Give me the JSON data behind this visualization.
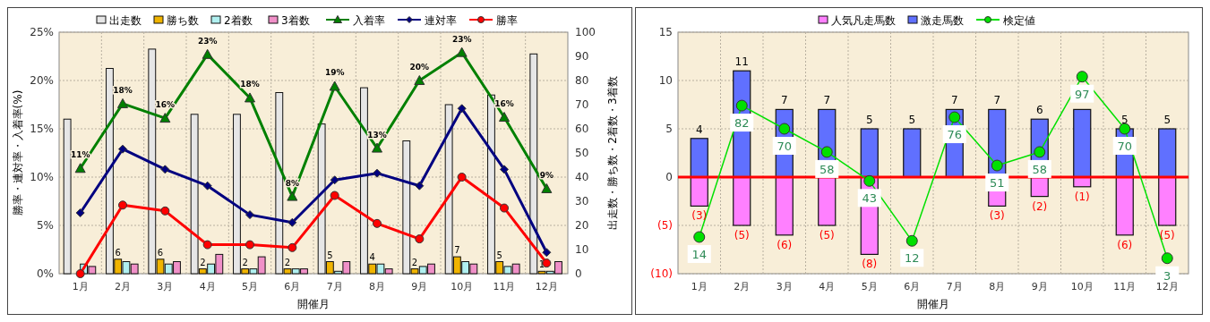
{
  "chart_data": [
    {
      "type": "bar",
      "legend": "top",
      "grid": true,
      "xlabel": "開催月",
      "ylabel": "勝率・連対率・入着率(%)",
      "y2label": "出走数・勝ち数・2着数・3着数",
      "categories": [
        "1月",
        "2月",
        "3月",
        "4月",
        "5月",
        "6月",
        "7月",
        "8月",
        "9月",
        "10月",
        "11月",
        "12月"
      ],
      "ylim": [
        0,
        25
      ],
      "yticks": [
        {
          "value": 0,
          "label": "0%"
        },
        {
          "value": 5,
          "label": "5%"
        },
        {
          "value": 10,
          "label": "10%"
        },
        {
          "value": 15,
          "label": "15%"
        },
        {
          "value": 20,
          "label": "20%"
        },
        {
          "value": 25,
          "label": "25%"
        }
      ],
      "y2lim": [
        0,
        100
      ],
      "y2ticks": [
        0,
        10,
        20,
        30,
        40,
        50,
        60,
        70,
        80,
        90,
        100
      ],
      "series": [
        {
          "name": "出走数",
          "axis": "y2",
          "color": "#e6e6e6",
          "values": [
            64,
            85,
            93,
            66,
            66,
            75,
            62,
            77,
            55,
            70,
            74,
            91
          ]
        },
        {
          "name": "勝ち数",
          "axis": "y2",
          "color": "#f0b400",
          "values": [
            0,
            6,
            6,
            2,
            2,
            2,
            5,
            4,
            2,
            7,
            5,
            1
          ],
          "value_labels": [
            null,
            "6",
            "6",
            "2",
            "2",
            "2",
            "5",
            "4",
            "2",
            "7",
            "5",
            "1"
          ]
        },
        {
          "name": "2着数",
          "axis": "y2",
          "color": "#b0f0f0",
          "values": [
            4,
            5,
            4,
            4,
            2,
            2,
            1,
            4,
            3,
            5,
            3,
            1
          ]
        },
        {
          "name": "3着数",
          "axis": "y2",
          "color": "#f090c8",
          "values": [
            3,
            4,
            5,
            8,
            7,
            2,
            5,
            2,
            4,
            4,
            4,
            5
          ]
        },
        {
          "name": "入着率",
          "type": "line",
          "marker": "triangle",
          "color": "#008000",
          "values": [
            10.9,
            17.6,
            16.1,
            22.7,
            18.2,
            8.0,
            19.4,
            13.0,
            20.0,
            22.9,
            16.2,
            8.8
          ],
          "value_labels": [
            "11%",
            "18%",
            "16%",
            "23%",
            "18%",
            "8%",
            "19%",
            "13%",
            "20%",
            "23%",
            "16%",
            "9%"
          ]
        },
        {
          "name": "連対率",
          "type": "line",
          "marker": "diamond",
          "color": "#000080",
          "values": [
            6.3,
            12.9,
            10.8,
            9.1,
            6.1,
            5.3,
            9.7,
            10.4,
            9.1,
            17.1,
            10.8,
            2.2
          ]
        },
        {
          "name": "勝率",
          "type": "line",
          "marker": "circle",
          "color": "#ff0000",
          "values": [
            0,
            7.1,
            6.5,
            3.0,
            3.0,
            2.7,
            8.1,
            5.2,
            3.6,
            10.0,
            6.8,
            1.1
          ]
        }
      ]
    },
    {
      "type": "bar",
      "stacked": true,
      "legend": "top",
      "grid": true,
      "xlabel": "開催月",
      "categories": [
        "1月",
        "2月",
        "3月",
        "4月",
        "5月",
        "6月",
        "7月",
        "8月",
        "9月",
        "10月",
        "11月",
        "12月"
      ],
      "ylim": [
        -10,
        15
      ],
      "yticks": [
        15,
        10,
        5,
        0,
        {
          "value": -5,
          "label": "(5)"
        },
        {
          "value": -10,
          "label": "(10)"
        }
      ],
      "y2lim": [
        -5,
        120
      ],
      "ref_lines": [
        {
          "axis": "y",
          "value": 0,
          "color": "#ff0000"
        }
      ],
      "series": [
        {
          "name": "人気凡走馬数",
          "color": "#ff80ff",
          "values": [
            -3,
            -5,
            -6,
            -5,
            -8,
            0,
            0,
            -3,
            -2,
            -1,
            -6,
            -5
          ],
          "value_labels": [
            "(3)",
            "(5)",
            "(6)",
            "(5)",
            "(8)",
            null,
            null,
            "(3)",
            "(2)",
            "(1)",
            "(6)",
            "(5)"
          ]
        },
        {
          "name": "激走馬数",
          "color": "#6070ff",
          "values": [
            4,
            11,
            7,
            7,
            5,
            5,
            7,
            7,
            6,
            7,
            5,
            5
          ],
          "value_labels": [
            "4",
            "11",
            "7",
            "7",
            "5",
            "5",
            "7",
            "7",
            "6",
            null,
            "5",
            "5"
          ]
        },
        {
          "name": "検定値",
          "type": "line",
          "axis": "y2",
          "marker": "circle",
          "color": "#00e000",
          "values": [
            14,
            82,
            70,
            58,
            43,
            12,
            76,
            51,
            58,
            97,
            70,
            3
          ],
          "value_labels": [
            "14",
            "82",
            "70",
            "58",
            "43",
            "12",
            "76",
            "51",
            "58",
            "97",
            "70",
            "3"
          ]
        }
      ]
    }
  ]
}
